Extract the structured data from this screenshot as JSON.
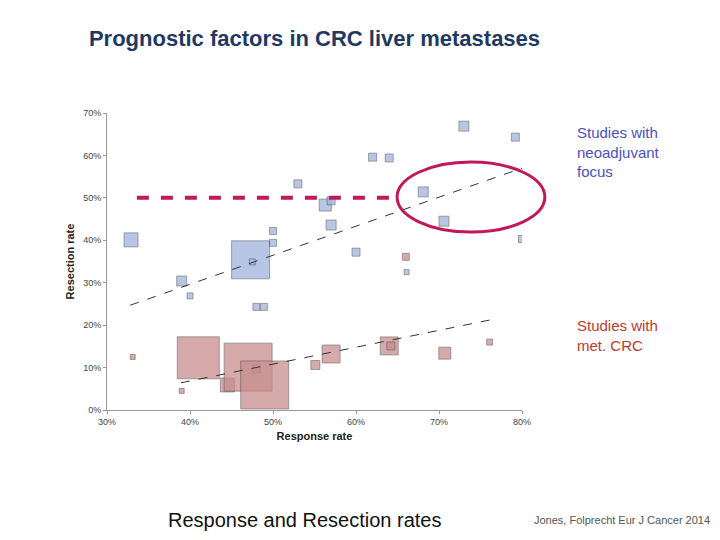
{
  "chart_data": {
    "type": "scatter",
    "title": "Prognostic factors in CRC liver metastases",
    "x_label": "Response rate",
    "y_label": "Resection rate",
    "caption": "Response and Resection rates",
    "source": "Jones, Folprecht Eur J Cancer 2014",
    "xlim": [
      30,
      80
    ],
    "ylim": [
      0,
      70
    ],
    "xticks": [
      {
        "value": 30,
        "label": "30%"
      },
      {
        "value": 40,
        "label": "40%"
      },
      {
        "value": 50,
        "label": "50%"
      },
      {
        "value": 60,
        "label": "60%"
      },
      {
        "value": 70,
        "label": "70%"
      },
      {
        "value": 80,
        "label": "80%"
      }
    ],
    "yticks": [
      {
        "value": 0,
        "label": "0%"
      },
      {
        "value": 10,
        "label": "10%"
      },
      {
        "value": 20,
        "label": "20%"
      },
      {
        "value": 30,
        "label": "30%"
      },
      {
        "value": 40,
        "label": "40%"
      },
      {
        "value": 50,
        "label": "50%"
      },
      {
        "value": 60,
        "label": "60%"
      },
      {
        "value": 70,
        "label": "70%"
      }
    ],
    "grid": false,
    "series": [
      {
        "name": "Studies with neoadjuvant focus",
        "type": "scatter",
        "marker": "square",
        "color": "#9fb4dd",
        "x": [
          32.9,
          39.0,
          40.0,
          47.3,
          47.5,
          48.0,
          48.9,
          50.0,
          50.0,
          53.0,
          56.3,
          57.0,
          57.0,
          60.0,
          62.0,
          64.0,
          66.1,
          68.1,
          70.6,
          73.0,
          79.2,
          80.0
        ],
        "values": [
          40.1,
          30.4,
          26.9,
          35.4,
          34.9,
          24.3,
          24.3,
          42.2,
          39.4,
          53.3,
          48.3,
          49.3,
          43.6,
          37.2,
          59.6,
          59.4,
          32.5,
          51.4,
          44.5,
          66.9,
          64.3,
          40.3
        ],
        "sizes": [
          14,
          10,
          6,
          38,
          6,
          7,
          7,
          7,
          7,
          8,
          12,
          8,
          10,
          8,
          8,
          8,
          5,
          10,
          10,
          10,
          8,
          7
        ]
      },
      {
        "name": "Studies with met. CRC",
        "type": "scatter",
        "marker": "square",
        "color": "#c98e8e",
        "x": [
          33.1,
          39.0,
          41.0,
          44.5,
          47.0,
          48.0,
          49.0,
          55.1,
          57.0,
          64.0,
          64.2,
          66.0,
          70.7,
          76.1
        ],
        "values": [
          12.5,
          4.5,
          12.3,
          5.9,
          10.1,
          9.7,
          5.9,
          10.6,
          13.2,
          15.1,
          15.1,
          36.1,
          13.4,
          16.0
        ],
        "sizes": [
          5,
          5,
          42,
          14,
          48,
          8,
          48,
          9,
          18,
          18,
          8,
          7,
          12,
          6
        ]
      },
      {
        "type": "line",
        "color": "#333333",
        "line_style": "dashed",
        "x": [
          32.8,
          80.0
        ],
        "values": [
          24.7,
          57.0
        ]
      },
      {
        "type": "line",
        "color": "#333333",
        "line_style": "dashed",
        "x": [
          38.9,
          76.1
        ],
        "values": [
          6.4,
          21.2
        ]
      },
      {
        "type": "line",
        "color": "#c2185b",
        "line_style": "dashed",
        "x": [
          33.6,
          65.3
        ],
        "values": [
          50,
          50
        ]
      }
    ]
  }
}
